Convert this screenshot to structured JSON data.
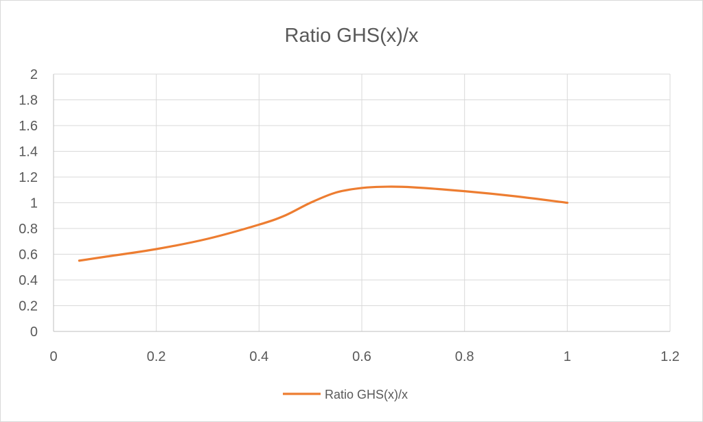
{
  "chart_data": {
    "type": "line",
    "title": "Ratio GHS(x)/x",
    "xlabel": "",
    "ylabel": "",
    "xlim": [
      0,
      1.2
    ],
    "ylim": [
      0,
      2
    ],
    "x_ticks": [
      "0",
      "0.2",
      "0.4",
      "0.6",
      "0.8",
      "1",
      "1.2"
    ],
    "y_ticks": [
      "0",
      "0.2",
      "0.4",
      "0.6",
      "0.8",
      "1",
      "1.2",
      "1.4",
      "1.6",
      "1.8",
      "2"
    ],
    "grid": true,
    "legend_position": "bottom",
    "series": [
      {
        "name": "Ratio GHS(x)/x",
        "color": "#ED7D31",
        "smooth": true,
        "x": [
          0.05,
          0.1,
          0.2,
          0.3,
          0.4,
          0.45,
          0.5,
          0.55,
          0.6,
          0.65,
          0.7,
          0.8,
          0.9,
          1.0
        ],
        "y": [
          0.55,
          0.58,
          0.64,
          0.72,
          0.83,
          0.9,
          1.0,
          1.08,
          1.115,
          1.125,
          1.12,
          1.09,
          1.05,
          1.0
        ]
      }
    ]
  }
}
